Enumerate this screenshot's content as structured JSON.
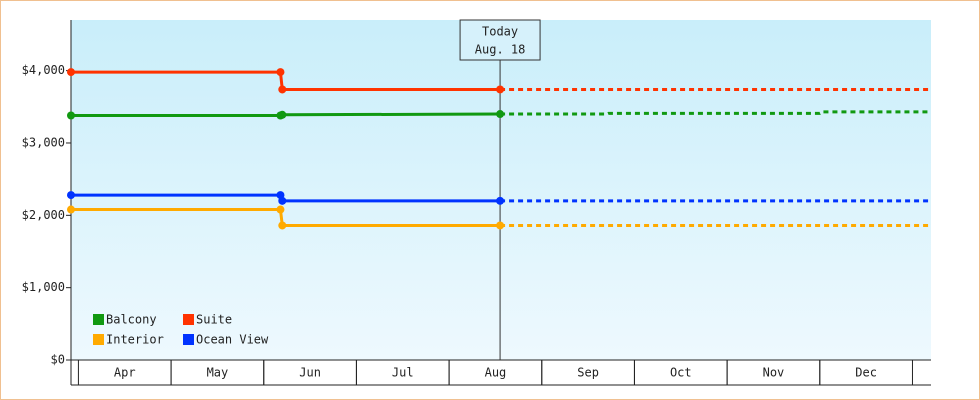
{
  "chart_data": {
    "type": "step-line",
    "xlim": [
      3.92,
      13.2
    ],
    "ylim": [
      0,
      4700
    ],
    "yticks": [
      {
        "value": 0,
        "label": "$0"
      },
      {
        "value": 1000,
        "label": "$1,000"
      },
      {
        "value": 2000,
        "label": "$2,000"
      },
      {
        "value": 3000,
        "label": "$3,000"
      },
      {
        "value": 4000,
        "label": "$4,000"
      }
    ],
    "xticks": [
      {
        "value": 4.5,
        "label": "Apr"
      },
      {
        "value": 5.5,
        "label": "May"
      },
      {
        "value": 6.5,
        "label": "Jun"
      },
      {
        "value": 7.5,
        "label": "Jul"
      },
      {
        "value": 8.5,
        "label": "Aug"
      },
      {
        "value": 9.5,
        "label": "Sep"
      },
      {
        "value": 10.5,
        "label": "Oct"
      },
      {
        "value": 11.5,
        "label": "Nov"
      },
      {
        "value": 12.5,
        "label": "Dec"
      }
    ],
    "annotation": {
      "x": 8.55,
      "lines": [
        "Today",
        "Aug. 18"
      ]
    },
    "series": [
      {
        "name": "Balcony",
        "color": "#119911",
        "x": [
          3.92,
          6.18,
          6.2,
          8.55
        ],
        "values": [
          3380,
          3380,
          3390,
          3400
        ],
        "forecast_x": [
          8.55,
          9.7,
          9.72,
          12.0,
          12.02,
          13.2
        ],
        "forecast": [
          3400,
          3400,
          3410,
          3410,
          3430,
          3430
        ]
      },
      {
        "name": "Suite",
        "color": "#ff3300",
        "x": [
          3.92,
          6.18,
          6.2,
          8.55
        ],
        "values": [
          3980,
          3980,
          3740,
          3740
        ],
        "forecast_x": [
          8.55,
          13.2
        ],
        "forecast": [
          3740,
          3740
        ]
      },
      {
        "name": "Interior",
        "color": "#ffaa00",
        "x": [
          3.92,
          6.18,
          6.2,
          8.55
        ],
        "values": [
          2080,
          2080,
          1860,
          1860
        ],
        "forecast_x": [
          8.55,
          13.2
        ],
        "forecast": [
          1860,
          1860
        ]
      },
      {
        "name": "Ocean View",
        "color": "#0033ff",
        "x": [
          3.92,
          6.18,
          6.2,
          8.55
        ],
        "values": [
          2280,
          2280,
          2200,
          2200
        ],
        "forecast_x": [
          8.55,
          13.2
        ],
        "forecast": [
          2200,
          2200
        ]
      }
    ]
  }
}
